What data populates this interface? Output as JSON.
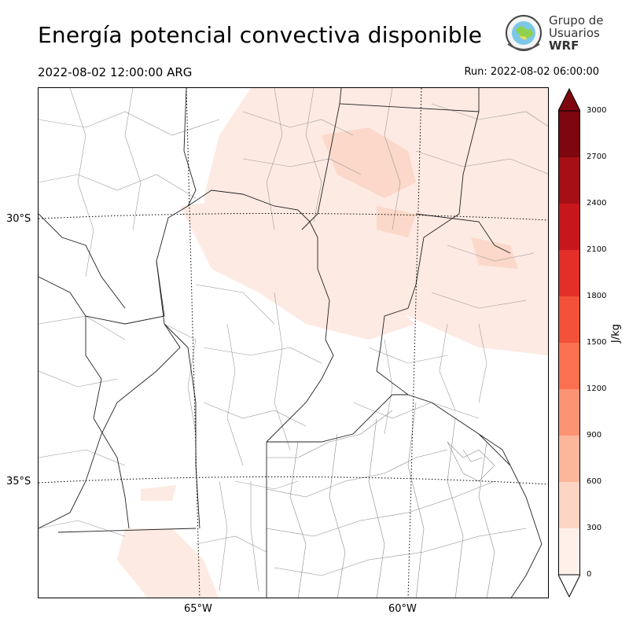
{
  "title": "Energía potencial convectiva disponible",
  "valid_time": "2022-08-02 12:00:00 ARG",
  "run_time": "Run: 2022-08-02 06:00:00",
  "logo": {
    "line1": "Grupo de",
    "line2": "Usuarios",
    "line3": "WRF",
    "icon": "globe-emblem-icon"
  },
  "map": {
    "lat_labels": [
      "30°S",
      "35°S"
    ],
    "lon_labels": [
      "65°W",
      "60°W"
    ]
  },
  "colorbar": {
    "unit": "J/kg",
    "ticks": [
      "0",
      "300",
      "600",
      "900",
      "1200",
      "1500",
      "1800",
      "2100",
      "2400",
      "2700",
      "3000"
    ],
    "colors": [
      "#fff0ea",
      "#fdd5c4",
      "#fcb69a",
      "#fc9474",
      "#fb7050",
      "#f3513a",
      "#e32f27",
      "#c8171c",
      "#a50f15",
      "#7d0610"
    ]
  }
}
